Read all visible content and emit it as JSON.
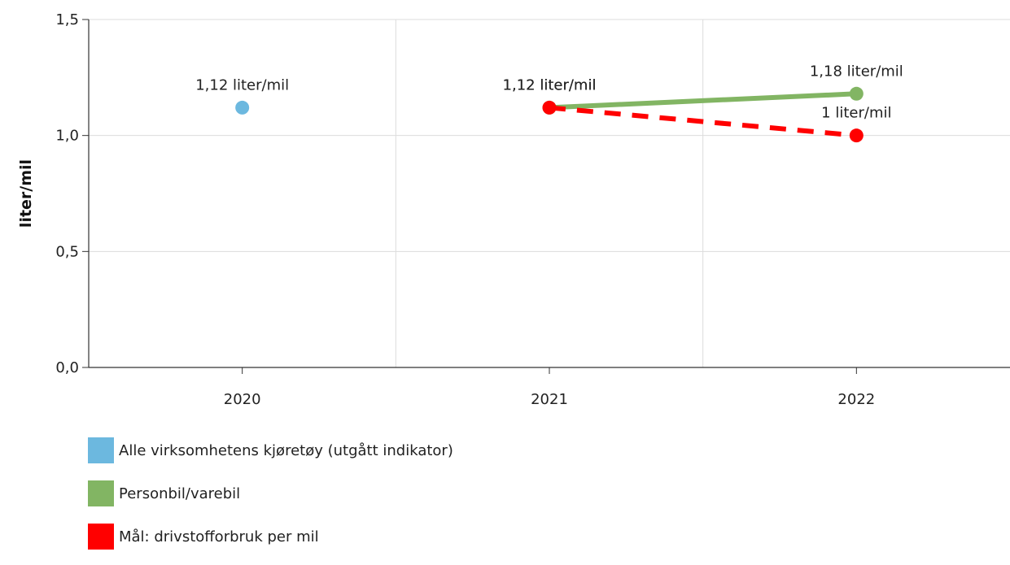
{
  "chart_data": {
    "type": "line",
    "ylabel": "liter/mil",
    "xlabel": "",
    "categories": [
      "2020",
      "2021",
      "2022"
    ],
    "ylim": [
      0,
      1.5
    ],
    "yticks": [
      "0,0",
      "0,5",
      "1,0",
      "1,5"
    ],
    "grid": true,
    "legend_position": "bottom-left",
    "series": [
      {
        "name": "Alle virksomhetens kjøretøy (utgått indikator)",
        "color": "#6cb8df",
        "style": "solid",
        "points": [
          {
            "x": "2020",
            "y": 1.12,
            "label": "1,12 liter/mil"
          }
        ]
      },
      {
        "name": "Personbil/varebil",
        "color": "#82b563",
        "style": "solid",
        "points": [
          {
            "x": "2021",
            "y": 1.12,
            "label": "1,12 liter/mil"
          },
          {
            "x": "2022",
            "y": 1.18,
            "label": "1,18 liter/mil"
          }
        ]
      },
      {
        "name": "Mål: drivstofforbruk per mil",
        "color": "#ff0000",
        "style": "dashed",
        "points": [
          {
            "x": "2021",
            "y": 1.12,
            "label": "1,12 liter/mil"
          },
          {
            "x": "2022",
            "y": 1.0,
            "label": "1 liter/mil"
          }
        ]
      }
    ]
  }
}
